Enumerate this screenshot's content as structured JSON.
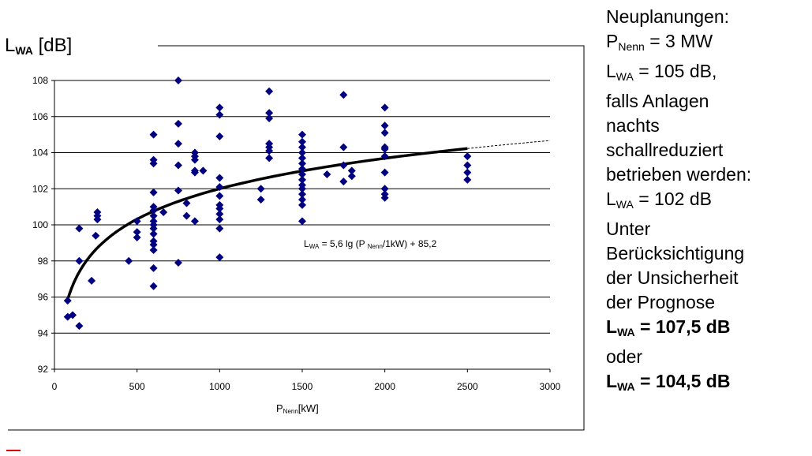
{
  "chart_data": {
    "type": "scatter",
    "ylabel": {
      "main": "L",
      "sub": "WA",
      "unit": " [dB]"
    },
    "xlabel": {
      "main": "P",
      "sub": "Nenn",
      "unit": "[kW]"
    },
    "xlim": [
      0,
      3000
    ],
    "ylim": [
      92,
      108
    ],
    "xticks": [
      "0",
      "500",
      "1000",
      "1500",
      "2000",
      "2500",
      "3000"
    ],
    "yticks": [
      "92",
      "94",
      "96",
      "98",
      "100",
      "102",
      "104",
      "106",
      "108"
    ],
    "grid": "horizontal",
    "marker_color": "#000080",
    "curve_color": "#000000",
    "annotation": {
      "main": "L",
      "sub": "WA",
      "mid1": " = 5,6 lg (P ",
      "sub2": "Nenn",
      "rest": "/1kW) + 85,2"
    },
    "fit": {
      "a": 5.6,
      "b": 85.2,
      "x_solid": [
        80,
        2500
      ],
      "x_dashed": [
        2500,
        3000
      ]
    },
    "points": [
      [
        80,
        94.9
      ],
      [
        80,
        95.8
      ],
      [
        110,
        95.0
      ],
      [
        150,
        94.4
      ],
      [
        150,
        98.0
      ],
      [
        150,
        99.8
      ],
      [
        225,
        96.9
      ],
      [
        250,
        99.4
      ],
      [
        260,
        100.3
      ],
      [
        260,
        100.5
      ],
      [
        260,
        100.7
      ],
      [
        450,
        98.0
      ],
      [
        500,
        99.3
      ],
      [
        500,
        99.6
      ],
      [
        500,
        100.2
      ],
      [
        600,
        96.6
      ],
      [
        600,
        97.6
      ],
      [
        600,
        98.6
      ],
      [
        600,
        98.9
      ],
      [
        600,
        99.1
      ],
      [
        600,
        99.5
      ],
      [
        600,
        99.8
      ],
      [
        600,
        100.0
      ],
      [
        600,
        100.2
      ],
      [
        600,
        100.5
      ],
      [
        600,
        100.8
      ],
      [
        600,
        101.0
      ],
      [
        600,
        101.8
      ],
      [
        600,
        103.4
      ],
      [
        600,
        103.6
      ],
      [
        600,
        105.0
      ],
      [
        660,
        100.7
      ],
      [
        750,
        97.9
      ],
      [
        750,
        101.9
      ],
      [
        750,
        103.3
      ],
      [
        750,
        104.5
      ],
      [
        750,
        105.6
      ],
      [
        750,
        108.0
      ],
      [
        800,
        100.5
      ],
      [
        800,
        101.2
      ],
      [
        850,
        100.2
      ],
      [
        850,
        102.9
      ],
      [
        850,
        103.0
      ],
      [
        850,
        103.6
      ],
      [
        850,
        103.8
      ],
      [
        850,
        104.0
      ],
      [
        900,
        103.0
      ],
      [
        1000,
        98.2
      ],
      [
        1000,
        99.8
      ],
      [
        1000,
        100.3
      ],
      [
        1000,
        100.6
      ],
      [
        1000,
        100.9
      ],
      [
        1000,
        101.1
      ],
      [
        1000,
        101.6
      ],
      [
        1000,
        102.1
      ],
      [
        1000,
        102.6
      ],
      [
        1000,
        104.9
      ],
      [
        1000,
        106.1
      ],
      [
        1000,
        106.5
      ],
      [
        1250,
        101.4
      ],
      [
        1250,
        102.0
      ],
      [
        1300,
        103.7
      ],
      [
        1300,
        104.1
      ],
      [
        1300,
        104.3
      ],
      [
        1300,
        104.5
      ],
      [
        1300,
        105.9
      ],
      [
        1300,
        106.2
      ],
      [
        1300,
        107.4
      ],
      [
        1500,
        100.2
      ],
      [
        1500,
        101.1
      ],
      [
        1500,
        101.4
      ],
      [
        1500,
        101.7
      ],
      [
        1500,
        102.0
      ],
      [
        1500,
        102.2
      ],
      [
        1500,
        102.5
      ],
      [
        1500,
        102.8
      ],
      [
        1500,
        103.1
      ],
      [
        1500,
        103.4
      ],
      [
        1500,
        103.7
      ],
      [
        1500,
        104.0
      ],
      [
        1500,
        104.3
      ],
      [
        1500,
        104.6
      ],
      [
        1500,
        105.0
      ],
      [
        1650,
        102.8
      ],
      [
        1750,
        102.4
      ],
      [
        1750,
        103.3
      ],
      [
        1750,
        104.3
      ],
      [
        1750,
        107.2
      ],
      [
        1800,
        102.7
      ],
      [
        1800,
        103.0
      ],
      [
        2000,
        101.5
      ],
      [
        2000,
        101.7
      ],
      [
        2000,
        102.0
      ],
      [
        2000,
        102.9
      ],
      [
        2000,
        103.8
      ],
      [
        2000,
        104.2
      ],
      [
        2000,
        104.3
      ],
      [
        2000,
        105.1
      ],
      [
        2000,
        105.5
      ],
      [
        2000,
        106.5
      ],
      [
        2500,
        102.5
      ],
      [
        2500,
        102.9
      ],
      [
        2500,
        103.3
      ],
      [
        2500,
        103.8
      ]
    ]
  },
  "side": {
    "l1": "Neuplanungen:",
    "l2": {
      "main": "P",
      "sub": "Nenn",
      "rest": " = 3 MW"
    },
    "l3": {
      "main": "L",
      "sub": "WA",
      "rest": " = 105 dB,"
    },
    "l4": "falls Anlagen",
    "l5": "nachts",
    "l6": "schallreduziert",
    "l7": "betrieben werden:",
    "l8": {
      "main": "L",
      "sub": "WA",
      "rest": " = 102 dB"
    },
    "l9": "Unter",
    "l10": "Berücksichtigung",
    "l11": "der Unsicherheit",
    "l12": "der Prognose",
    "l13": {
      "main": "L",
      "sub": "WA",
      "rest": " = 107,5 dB"
    },
    "l14": "oder",
    "l15": {
      "main": "L",
      "sub": "WA",
      "rest": " = 104,5 dB"
    }
  }
}
